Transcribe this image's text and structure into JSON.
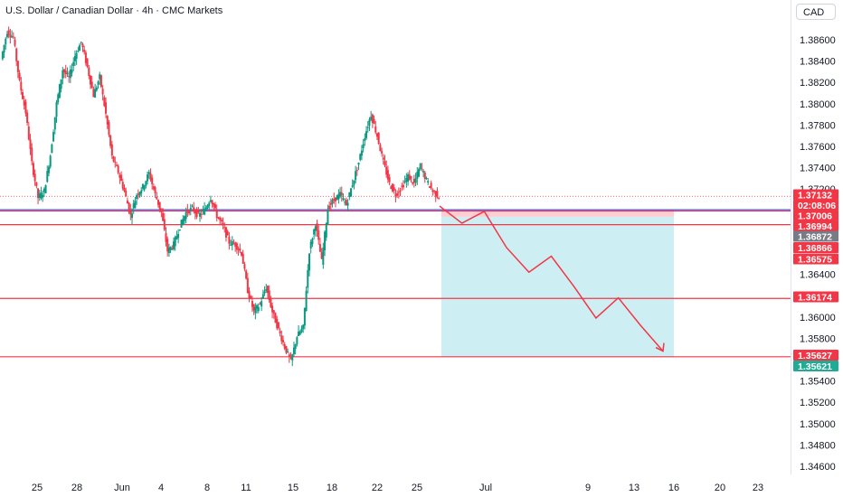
{
  "header": {
    "title": "U.S. Dollar / Canadian Dollar · 4h · CMC Markets",
    "currency": "CAD"
  },
  "colors": {
    "up": "#089981",
    "down": "#f23645",
    "hline": "#f23645",
    "blue_line": "#2962ff",
    "stop_zone": "#ffcdd2",
    "target_zone": "#cdeff3",
    "arrow": "#f23645"
  },
  "price_labels": [
    {
      "label": "1.37132",
      "color": "#f23645"
    },
    {
      "label": "02:08:06",
      "color": "#f23645"
    },
    {
      "label": "1.37006",
      "color": "#f23645"
    },
    {
      "label": "1.36994",
      "color": "#f23645"
    },
    {
      "label": "1.36872",
      "color": "#787b86"
    },
    {
      "label": "1.36866",
      "color": "#f23645"
    },
    {
      "label": "1.36575",
      "color": "#f23645"
    },
    {
      "label": "1.36174",
      "color": "#f23645"
    },
    {
      "label": "1.35627",
      "color": "#f23645"
    },
    {
      "label": "1.35621",
      "color": "#22ab94"
    }
  ],
  "chart_data": {
    "type": "candlestick",
    "title": "U.S. Dollar / Canadian Dollar · 4h · CMC Markets",
    "y_axis_currency": "CAD",
    "ylim": [
      1.3454,
      1.3888
    ],
    "y_ticks": [
      "1.38600",
      "1.38400",
      "1.38200",
      "1.38000",
      "1.37800",
      "1.37600",
      "1.37400",
      "1.37200",
      "1.36400",
      "1.36000",
      "1.35800",
      "1.35400",
      "1.35200",
      "1.35000",
      "1.34800",
      "1.34600"
    ],
    "x_ticks": [
      "25",
      "28",
      "Jun",
      "4",
      "8",
      "11",
      "15",
      "18",
      "22",
      "25",
      "Jul",
      "9",
      "13",
      "16",
      "20",
      "23"
    ],
    "horizontal_lines": [
      1.36994,
      1.36866,
      1.36174,
      1.35627
    ],
    "blue_line": 1.37006,
    "current_price": 1.37132,
    "countdown": "02:08:06",
    "position": {
      "entry": 1.37006,
      "stop_top": 1.37006,
      "entry_line": 1.36872,
      "target": 1.35621
    },
    "projection_path": [
      1.3704,
      1.3688,
      1.3699,
      1.3665,
      1.3642,
      1.3657,
      1.3629,
      1.3599,
      1.3618,
      1.3592,
      1.3568
    ],
    "price_path": [
      1.3842,
      1.3868,
      1.3862,
      1.382,
      1.3792,
      1.3744,
      1.3712,
      1.3718,
      1.3752,
      1.38,
      1.3832,
      1.3824,
      1.3845,
      1.3858,
      1.3834,
      1.3808,
      1.3825,
      1.379,
      1.375,
      1.3736,
      1.3718,
      1.3695,
      1.3715,
      1.3722,
      1.3735,
      1.3715,
      1.3698,
      1.3662,
      1.3668,
      1.3685,
      1.3698,
      1.3702,
      1.3695,
      1.37,
      1.3712,
      1.3695,
      1.3685,
      1.367,
      1.3668,
      1.366,
      1.3625,
      1.3605,
      1.3612,
      1.3628,
      1.3605,
      1.3588,
      1.3572,
      1.3558,
      1.3582,
      1.359,
      1.3662,
      1.3688,
      1.3652,
      1.3702,
      1.371,
      1.3715,
      1.3705,
      1.3725,
      1.3745,
      1.377,
      1.379,
      1.377,
      1.3745,
      1.3725,
      1.3715,
      1.3722,
      1.3732,
      1.3725,
      1.3742,
      1.3728,
      1.3718,
      1.3713
    ]
  }
}
